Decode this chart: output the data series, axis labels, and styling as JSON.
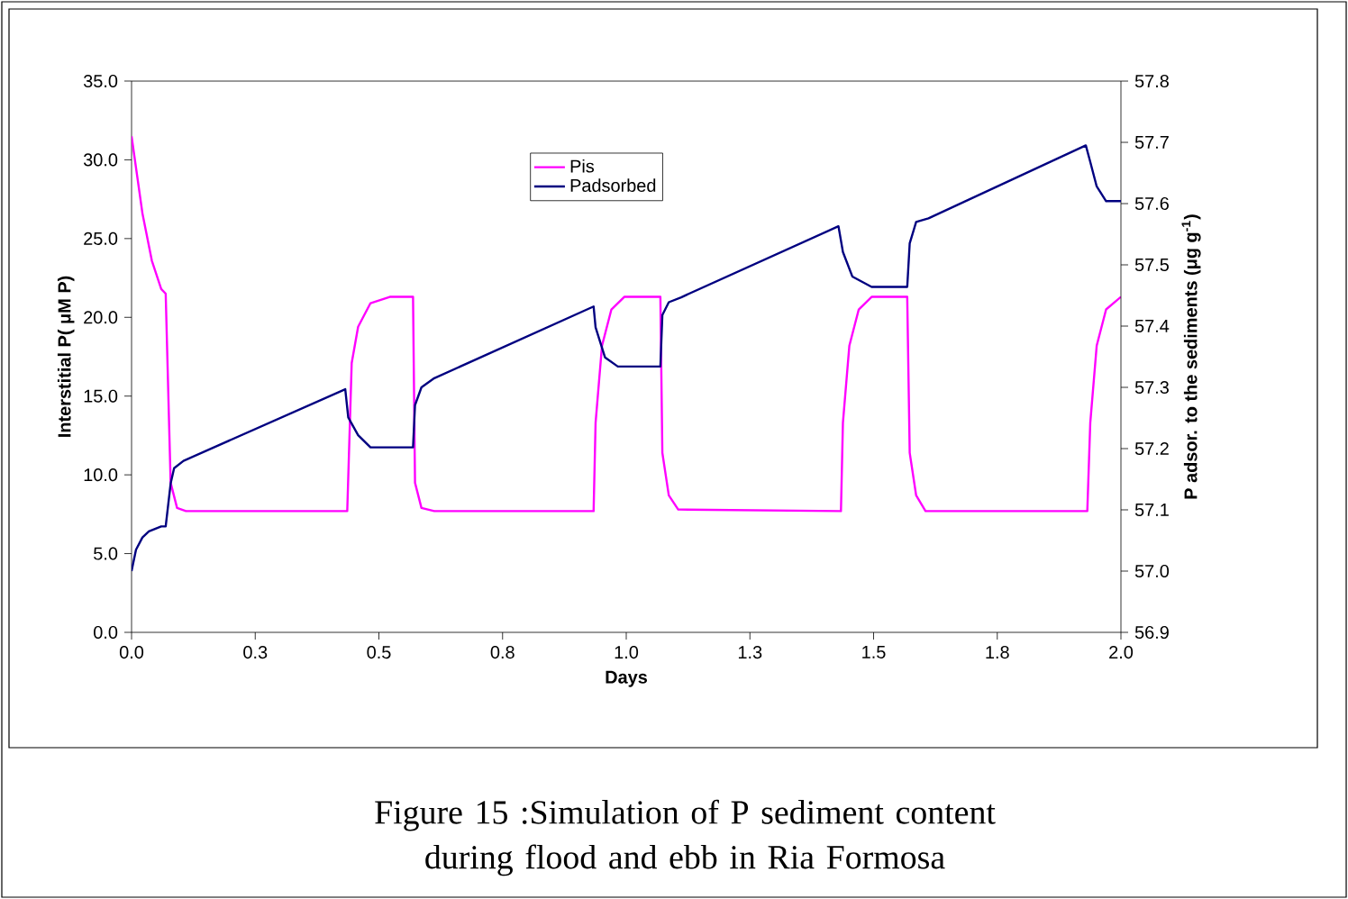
{
  "chart_data": {
    "type": "line",
    "xlabel": "Days",
    "ylabel": "Interstitial P( μM P)",
    "y2label": "P adsor. to the sediments (μg g$^{-1}$)",
    "xlim": [
      0,
      2
    ],
    "xticks": [
      {
        "value": 0,
        "label": "0.0"
      },
      {
        "value": 0.25,
        "label": "0.3"
      },
      {
        "value": 0.5,
        "label": "0.5"
      },
      {
        "value": 0.75,
        "label": "0.8"
      },
      {
        "value": 1,
        "label": "1.0"
      },
      {
        "value": 1.25,
        "label": "1.3"
      },
      {
        "value": 1.5,
        "label": "1.5"
      },
      {
        "value": 1.75,
        "label": "1.8"
      },
      {
        "value": 2,
        "label": "2.0"
      }
    ],
    "ylim": [
      0,
      35
    ],
    "yticks": [
      {
        "value": 0,
        "label": "0.0"
      },
      {
        "value": 5,
        "label": "5.0"
      },
      {
        "value": 10,
        "label": "10.0"
      },
      {
        "value": 15,
        "label": "15.0"
      },
      {
        "value": 20,
        "label": "20.0"
      },
      {
        "value": 25,
        "label": "25.0"
      },
      {
        "value": 30,
        "label": "30.0"
      },
      {
        "value": 35,
        "label": "35.0"
      }
    ],
    "y2lim": [
      56.9,
      57.8
    ],
    "y2ticks": [
      56.9,
      {
        "value": 57,
        "label": "57.0"
      },
      57.1,
      57.2,
      57.3,
      57.4,
      57.5,
      57.6,
      57.7,
      57.8
    ],
    "legend": "top",
    "annotations": [
      "Figure 15 :Simulation of P sediment content during flood and ebb in Ria Formosa"
    ],
    "series": [
      {
        "name": "Pis",
        "color": "#ff00ff",
        "x": [
          0,
          0.022,
          0.041,
          0.06,
          0.069,
          0.079,
          0.092,
          0.11,
          0.436,
          0.445,
          0.458,
          0.483,
          0.522,
          0.569,
          0.573,
          0.586,
          0.612,
          0.934,
          0.938,
          0.951,
          0.97,
          0.996,
          1.069,
          1.073,
          1.086,
          1.105,
          1.434,
          1.438,
          1.451,
          1.47,
          1.496,
          1.568,
          1.573,
          1.586,
          1.605,
          1.932,
          1.938,
          1.951,
          1.97,
          2.0
        ],
        "values": [
          31.5,
          26.6,
          23.6,
          21.8,
          21.5,
          9.5,
          7.9,
          7.7,
          7.7,
          17.1,
          19.4,
          20.9,
          21.3,
          21.3,
          9.5,
          7.9,
          7.7,
          7.7,
          13.3,
          18.2,
          20.5,
          21.3,
          21.3,
          11.4,
          8.7,
          7.8,
          7.7,
          13.3,
          18.2,
          20.5,
          21.3,
          21.3,
          11.4,
          8.7,
          7.7,
          7.7,
          13.3,
          18.2,
          20.5,
          21.3
        ]
      },
      {
        "name": "Padsorbed",
        "color": "#000080",
        "axis": "y2",
        "x": [
          0,
          0.009,
          0.022,
          0.035,
          0.06,
          0.069,
          0.079,
          0.086,
          0.105,
          0.432,
          0.438,
          0.458,
          0.483,
          0.569,
          0.573,
          0.586,
          0.612,
          0.934,
          0.938,
          0.957,
          0.983,
          1.069,
          1.073,
          1.086,
          1.111,
          1.429,
          1.438,
          1.457,
          1.496,
          1.568,
          1.573,
          1.586,
          1.611,
          1.929,
          1.938,
          1.951,
          1.97,
          2.0
        ],
        "values": [
          57.0,
          57.035,
          57.055,
          57.065,
          57.073,
          57.073,
          57.143,
          57.168,
          57.18,
          57.297,
          57.251,
          57.222,
          57.202,
          57.202,
          57.271,
          57.3,
          57.315,
          57.432,
          57.398,
          57.349,
          57.334,
          57.334,
          57.418,
          57.439,
          57.447,
          57.563,
          57.521,
          57.481,
          57.464,
          57.464,
          57.535,
          57.57,
          57.576,
          57.695,
          57.668,
          57.628,
          57.604,
          57.604
        ]
      }
    ]
  }
}
